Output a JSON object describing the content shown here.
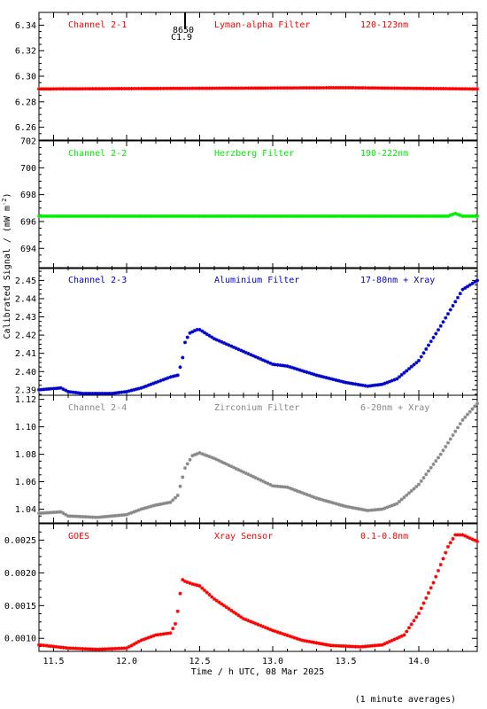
{
  "chart_data": {
    "type": "scatter",
    "ylabel": "Calibrated Signal / (mW m",
    "ylabel_sup": "-2",
    "ylabel_end": ")",
    "xlabel": "Time / h UTC, 08 Mar 2025",
    "footnote": "(1 minute averages)",
    "xlim": [
      11.4,
      14.4
    ],
    "xticks": [
      11.5,
      12.0,
      12.5,
      13.0,
      13.5,
      14.0
    ],
    "xtick_labels": [
      "11.5",
      "12.0",
      "12.5",
      "13.0",
      "13.5",
      "14.0"
    ],
    "event": {
      "x": 12.4,
      "label_top": "8650",
      "label_bottom": "C1.9"
    },
    "panels": [
      {
        "channel": "Channel 2-1",
        "filter": "Lyman-alpha Filter",
        "band": "120-123nm",
        "color": "#ff0000",
        "ylim": [
          6.25,
          6.35
        ],
        "yticks": [
          6.26,
          6.28,
          6.3,
          6.32,
          6.34
        ],
        "ytick_labels": [
          "6.26",
          "6.28",
          "6.30",
          "6.32",
          "6.34"
        ],
        "series": [
          {
            "x": [
              11.4,
              13.5,
              14.4
            ],
            "y": [
              6.29,
              6.291,
              6.29
            ]
          }
        ]
      },
      {
        "channel": "Channel 2-2",
        "filter": "Herzberg Filter",
        "band": "190-222nm",
        "color": "#00ee00",
        "ylim": [
          692.5,
          702
        ],
        "yticks": [
          694,
          696,
          698,
          700,
          702
        ],
        "ytick_labels": [
          "694",
          "696",
          "698",
          "700",
          "702"
        ],
        "series": [
          {
            "x": [
              11.4,
              14.2,
              14.25,
              14.3,
              14.4
            ],
            "y": [
              696.4,
              696.4,
              696.6,
              696.4,
              696.4
            ]
          }
        ]
      },
      {
        "channel": "Channel 2-3",
        "filter": "Aluminium Filter",
        "band": "17-80nm + Xray",
        "color": "#0000cc",
        "ylim": [
          2.387,
          2.457
        ],
        "yticks": [
          2.39,
          2.4,
          2.41,
          2.42,
          2.43,
          2.44,
          2.45
        ],
        "ytick_labels": [
          "2.39",
          "2.40",
          "2.41",
          "2.42",
          "2.43",
          "2.44",
          "2.45"
        ],
        "series": [
          {
            "x": [
              11.4,
              11.55,
              11.6,
              11.7,
              11.9,
              12.0,
              12.1,
              12.2,
              12.3,
              12.35,
              12.38,
              12.4,
              12.43,
              12.48,
              12.5,
              12.6,
              12.8,
              13.0,
              13.1,
              13.3,
              13.5,
              13.65,
              13.75,
              13.85,
              14.0,
              14.15,
              14.3,
              14.4
            ],
            "y": [
              2.39,
              2.391,
              2.389,
              2.388,
              2.388,
              2.389,
              2.391,
              2.394,
              2.397,
              2.398,
              2.406,
              2.416,
              2.421,
              2.423,
              2.423,
              2.418,
              2.411,
              2.404,
              2.403,
              2.398,
              2.394,
              2.392,
              2.393,
              2.396,
              2.406,
              2.425,
              2.445,
              2.45
            ]
          }
        ]
      },
      {
        "channel": "Channel 2-4",
        "filter": "Zirconium Filter",
        "band": "6-20nm + Xray",
        "color": "#888888",
        "ylim": [
          1.03,
          1.123
        ],
        "yticks": [
          1.04,
          1.06,
          1.08,
          1.1,
          1.12
        ],
        "ytick_labels": [
          "1.04",
          "1.06",
          "1.08",
          "1.10",
          "1.12"
        ],
        "series": [
          {
            "x": [
              11.4,
              11.55,
              11.6,
              11.8,
              12.0,
              12.1,
              12.2,
              12.3,
              12.35,
              12.4,
              12.45,
              12.5,
              12.6,
              12.8,
              13.0,
              13.1,
              13.3,
              13.5,
              13.65,
              13.75,
              13.85,
              14.0,
              14.15,
              14.3,
              14.4
            ],
            "y": [
              1.037,
              1.038,
              1.035,
              1.034,
              1.036,
              1.04,
              1.043,
              1.045,
              1.05,
              1.07,
              1.079,
              1.081,
              1.077,
              1.067,
              1.057,
              1.056,
              1.048,
              1.042,
              1.039,
              1.04,
              1.044,
              1.058,
              1.08,
              1.105,
              1.117
            ]
          }
        ]
      },
      {
        "channel": "GOES",
        "filter": "Xray Sensor",
        "band": "0.1-0.8nm",
        "color": "#ff0000",
        "ylim": [
          0.0008,
          0.00275
        ],
        "yticks": [
          0.001,
          0.0015,
          0.002,
          0.0025
        ],
        "ytick_labels": [
          "0.0010",
          "0.0015",
          "0.0020",
          "0.0025"
        ],
        "series": [
          {
            "x": [
              11.4,
              11.6,
              11.8,
              12.0,
              12.1,
              12.2,
              12.3,
              12.34,
              12.38,
              12.4,
              12.45,
              12.5,
              12.6,
              12.8,
              13.0,
              13.2,
              13.4,
              13.6,
              13.75,
              13.9,
              14.0,
              14.1,
              14.2,
              14.25,
              14.3,
              14.4
            ],
            "y": [
              0.0009,
              0.00085,
              0.00083,
              0.00085,
              0.00097,
              0.00105,
              0.00108,
              0.00125,
              0.0019,
              0.00187,
              0.00183,
              0.0018,
              0.0016,
              0.0013,
              0.00112,
              0.00097,
              0.00089,
              0.00087,
              0.0009,
              0.00105,
              0.00138,
              0.00185,
              0.0024,
              0.00258,
              0.00258,
              0.00248
            ]
          }
        ]
      }
    ]
  }
}
